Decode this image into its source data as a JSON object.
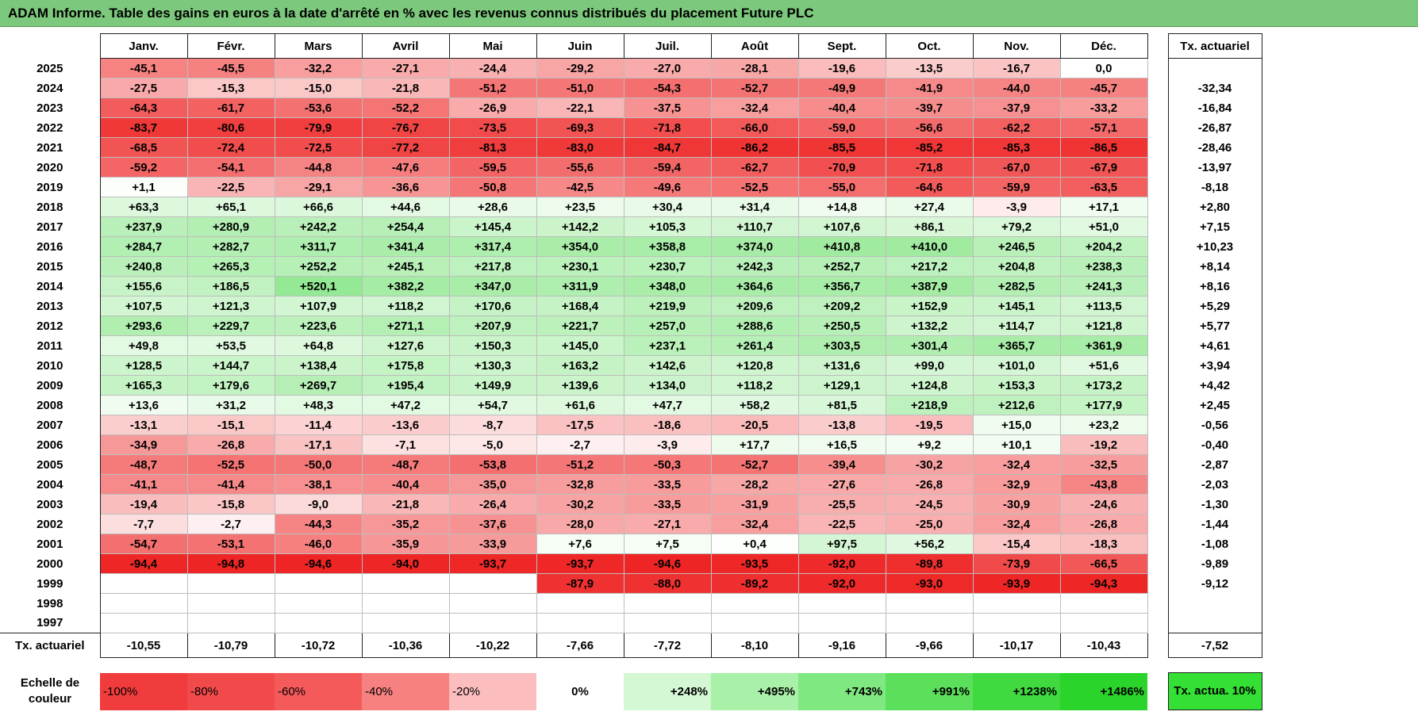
{
  "title": "ADAM Informe. Table des gains en euros à la date d'arrêté en % avec les revenus connus distribués du placement Future PLC",
  "chart_data": {
    "type": "heatmap",
    "title": "ADAM Informe. Table des gains en euros à la date d'arrêté en % avec les revenus connus distribués du placement Future PLC",
    "columns": [
      "Janv.",
      "Févr.",
      "Mars",
      "Avril",
      "Mai",
      "Juin",
      "Juil.",
      "Août",
      "Sept.",
      "Oct.",
      "Nov.",
      "Déc."
    ],
    "rate_header": "Tx. actuariel",
    "rows": [
      {
        "year": "2025",
        "cells": [
          "-45,1",
          "-45,5",
          "-32,2",
          "-27,1",
          "-24,4",
          "-29,2",
          "-27,0",
          "-28,1",
          "-19,6",
          "-13,5",
          "-16,7",
          "0,0"
        ],
        "rate": ""
      },
      {
        "year": "2024",
        "cells": [
          "-27,5",
          "-15,3",
          "-15,0",
          "-21,8",
          "-51,2",
          "-51,0",
          "-54,3",
          "-52,7",
          "-49,9",
          "-41,9",
          "-44,0",
          "-45,7"
        ],
        "rate": "-32,34"
      },
      {
        "year": "2023",
        "cells": [
          "-64,3",
          "-61,7",
          "-53,6",
          "-52,2",
          "-26,9",
          "-22,1",
          "-37,5",
          "-32,4",
          "-40,4",
          "-39,7",
          "-37,9",
          "-33,2"
        ],
        "rate": "-16,84"
      },
      {
        "year": "2022",
        "cells": [
          "-83,7",
          "-80,6",
          "-79,9",
          "-76,7",
          "-73,5",
          "-69,3",
          "-71,8",
          "-66,0",
          "-59,0",
          "-56,6",
          "-62,2",
          "-57,1"
        ],
        "rate": "-26,87"
      },
      {
        "year": "2021",
        "cells": [
          "-68,5",
          "-72,4",
          "-72,5",
          "-77,2",
          "-81,3",
          "-83,0",
          "-84,7",
          "-86,2",
          "-85,5",
          "-85,2",
          "-85,3",
          "-86,5"
        ],
        "rate": "-28,46"
      },
      {
        "year": "2020",
        "cells": [
          "-59,2",
          "-54,1",
          "-44,8",
          "-47,6",
          "-59,5",
          "-55,6",
          "-59,4",
          "-62,7",
          "-70,9",
          "-71,8",
          "-67,0",
          "-67,9"
        ],
        "rate": "-13,97"
      },
      {
        "year": "2019",
        "cells": [
          "+1,1",
          "-22,5",
          "-29,1",
          "-36,6",
          "-50,8",
          "-42,5",
          "-49,6",
          "-52,5",
          "-55,0",
          "-64,6",
          "-59,9",
          "-63,5"
        ],
        "rate": "-8,18"
      },
      {
        "year": "2018",
        "cells": [
          "+63,3",
          "+65,1",
          "+66,6",
          "+44,6",
          "+28,6",
          "+23,5",
          "+30,4",
          "+31,4",
          "+14,8",
          "+27,4",
          "-3,9",
          "+17,1"
        ],
        "rate": "+2,80"
      },
      {
        "year": "2017",
        "cells": [
          "+237,9",
          "+280,9",
          "+242,2",
          "+254,4",
          "+145,4",
          "+142,2",
          "+105,3",
          "+110,7",
          "+107,6",
          "+86,1",
          "+79,2",
          "+51,0"
        ],
        "rate": "+7,15"
      },
      {
        "year": "2016",
        "cells": [
          "+284,7",
          "+282,7",
          "+311,7",
          "+341,4",
          "+317,4",
          "+354,0",
          "+358,8",
          "+374,0",
          "+410,8",
          "+410,0",
          "+246,5",
          "+204,2"
        ],
        "rate": "+10,23"
      },
      {
        "year": "2015",
        "cells": [
          "+240,8",
          "+265,3",
          "+252,2",
          "+245,1",
          "+217,8",
          "+230,1",
          "+230,7",
          "+242,3",
          "+252,7",
          "+217,2",
          "+204,8",
          "+238,3"
        ],
        "rate": "+8,14"
      },
      {
        "year": "2014",
        "cells": [
          "+155,6",
          "+186,5",
          "+520,1",
          "+382,2",
          "+347,0",
          "+311,9",
          "+348,0",
          "+364,6",
          "+356,7",
          "+387,9",
          "+282,5",
          "+241,3"
        ],
        "rate": "+8,16"
      },
      {
        "year": "2013",
        "cells": [
          "+107,5",
          "+121,3",
          "+107,9",
          "+118,2",
          "+170,6",
          "+168,4",
          "+219,9",
          "+209,6",
          "+209,2",
          "+152,9",
          "+145,1",
          "+113,5"
        ],
        "rate": "+5,29"
      },
      {
        "year": "2012",
        "cells": [
          "+293,6",
          "+229,7",
          "+223,6",
          "+271,1",
          "+207,9",
          "+221,7",
          "+257,0",
          "+288,6",
          "+250,5",
          "+132,2",
          "+114,7",
          "+121,8"
        ],
        "rate": "+5,77"
      },
      {
        "year": "2011",
        "cells": [
          "+49,8",
          "+53,5",
          "+64,8",
          "+127,6",
          "+150,3",
          "+145,0",
          "+237,1",
          "+261,4",
          "+303,5",
          "+301,4",
          "+365,7",
          "+361,9"
        ],
        "rate": "+4,61"
      },
      {
        "year": "2010",
        "cells": [
          "+128,5",
          "+144,7",
          "+138,4",
          "+175,8",
          "+130,3",
          "+163,2",
          "+142,6",
          "+120,8",
          "+131,6",
          "+99,0",
          "+101,0",
          "+51,6"
        ],
        "rate": "+3,94"
      },
      {
        "year": "2009",
        "cells": [
          "+165,3",
          "+179,6",
          "+269,7",
          "+195,4",
          "+149,9",
          "+139,6",
          "+134,0",
          "+118,2",
          "+129,1",
          "+124,8",
          "+153,3",
          "+173,2"
        ],
        "rate": "+4,42"
      },
      {
        "year": "2008",
        "cells": [
          "+13,6",
          "+31,2",
          "+48,3",
          "+47,2",
          "+54,7",
          "+61,6",
          "+47,7",
          "+58,2",
          "+81,5",
          "+218,9",
          "+212,6",
          "+177,9"
        ],
        "rate": "+2,45"
      },
      {
        "year": "2007",
        "cells": [
          "-13,1",
          "-15,1",
          "-11,4",
          "-13,6",
          "-8,7",
          "-17,5",
          "-18,6",
          "-20,5",
          "-13,8",
          "-19,5",
          "+15,0",
          "+23,2"
        ],
        "rate": "-0,56"
      },
      {
        "year": "2006",
        "cells": [
          "-34,9",
          "-26,8",
          "-17,1",
          "-7,1",
          "-5,0",
          "-2,7",
          "-3,9",
          "+17,7",
          "+16,5",
          "+9,2",
          "+10,1",
          "-19,2"
        ],
        "rate": "-0,40"
      },
      {
        "year": "2005",
        "cells": [
          "-48,7",
          "-52,5",
          "-50,0",
          "-48,7",
          "-53,8",
          "-51,2",
          "-50,3",
          "-52,7",
          "-39,4",
          "-30,2",
          "-32,4",
          "-32,5"
        ],
        "rate": "-2,87"
      },
      {
        "year": "2004",
        "cells": [
          "-41,1",
          "-41,4",
          "-38,1",
          "-40,4",
          "-35,0",
          "-32,8",
          "-33,5",
          "-28,2",
          "-27,6",
          "-26,8",
          "-32,9",
          "-43,8"
        ],
        "rate": "-2,03"
      },
      {
        "year": "2003",
        "cells": [
          "-19,4",
          "-15,8",
          "-9,0",
          "-21,8",
          "-26,4",
          "-30,2",
          "-33,5",
          "-31,9",
          "-25,5",
          "-24,5",
          "-30,9",
          "-24,6"
        ],
        "rate": "-1,30"
      },
      {
        "year": "2002",
        "cells": [
          "-7,7",
          "-2,7",
          "-44,3",
          "-35,2",
          "-37,6",
          "-28,0",
          "-27,1",
          "-32,4",
          "-22,5",
          "-25,0",
          "-32,4",
          "-26,8"
        ],
        "rate": "-1,44"
      },
      {
        "year": "2001",
        "cells": [
          "-54,7",
          "-53,1",
          "-46,0",
          "-35,9",
          "-33,9",
          "+7,6",
          "+7,5",
          "+0,4",
          "+97,5",
          "+56,2",
          "-15,4",
          "-18,3"
        ],
        "rate": "-1,08"
      },
      {
        "year": "2000",
        "cells": [
          "-94,4",
          "-94,8",
          "-94,6",
          "-94,0",
          "-93,7",
          "-93,7",
          "-94,6",
          "-93,5",
          "-92,0",
          "-89,8",
          "-73,9",
          "-66,5"
        ],
        "rate": "-9,89"
      },
      {
        "year": "1999",
        "cells": [
          "",
          "",
          "",
          "",
          "",
          "-87,9",
          "-88,0",
          "-89,2",
          "-92,0",
          "-93,0",
          "-93,9",
          "-94,3"
        ],
        "rate": "-9,12"
      },
      {
        "year": "1998",
        "cells": [
          "",
          "",
          "",
          "",
          "",
          "",
          "",
          "",
          "",
          "",
          "",
          ""
        ],
        "rate": ""
      },
      {
        "year": "1997",
        "cells": [
          "",
          "",
          "",
          "",
          "",
          "",
          "",
          "",
          "",
          "",
          "",
          ""
        ],
        "rate": ""
      }
    ],
    "footer": {
      "label": "Tx. actuariel",
      "cells": [
        "-10,55",
        "-10,79",
        "-10,72",
        "-10,36",
        "-10,22",
        "-7,66",
        "-7,72",
        "-8,10",
        "-9,16",
        "-9,66",
        "-10,17",
        "-10,43"
      ],
      "rate": "-7,52"
    },
    "legend": {
      "label": "Echelle de couleur",
      "items": [
        {
          "text": "-100%",
          "color": "#f03c3c",
          "align": "left"
        },
        {
          "text": "-80%",
          "color": "#f24a4a",
          "align": "left"
        },
        {
          "text": "-60%",
          "color": "#f45a5a",
          "align": "left"
        },
        {
          "text": "-40%",
          "color": "#f78080",
          "align": "left"
        },
        {
          "text": "-20%",
          "color": "#fbbdbd",
          "align": "left"
        },
        {
          "text": "0%",
          "color": "#ffffff",
          "align": "center"
        },
        {
          "text": "+248%",
          "color": "#d4f7d4",
          "align": "right"
        },
        {
          "text": "+495%",
          "color": "#a9f0a9",
          "align": "right"
        },
        {
          "text": "+743%",
          "color": "#80e880",
          "align": "right"
        },
        {
          "text": "+991%",
          "color": "#5ce05c",
          "align": "right"
        },
        {
          "text": "+1238%",
          "color": "#40da40",
          "align": "right"
        },
        {
          "text": "+1486%",
          "color": "#2bd42b",
          "align": "right"
        }
      ],
      "rate_text": "Tx. actua. 10%",
      "rate_color": "#33e033"
    }
  }
}
